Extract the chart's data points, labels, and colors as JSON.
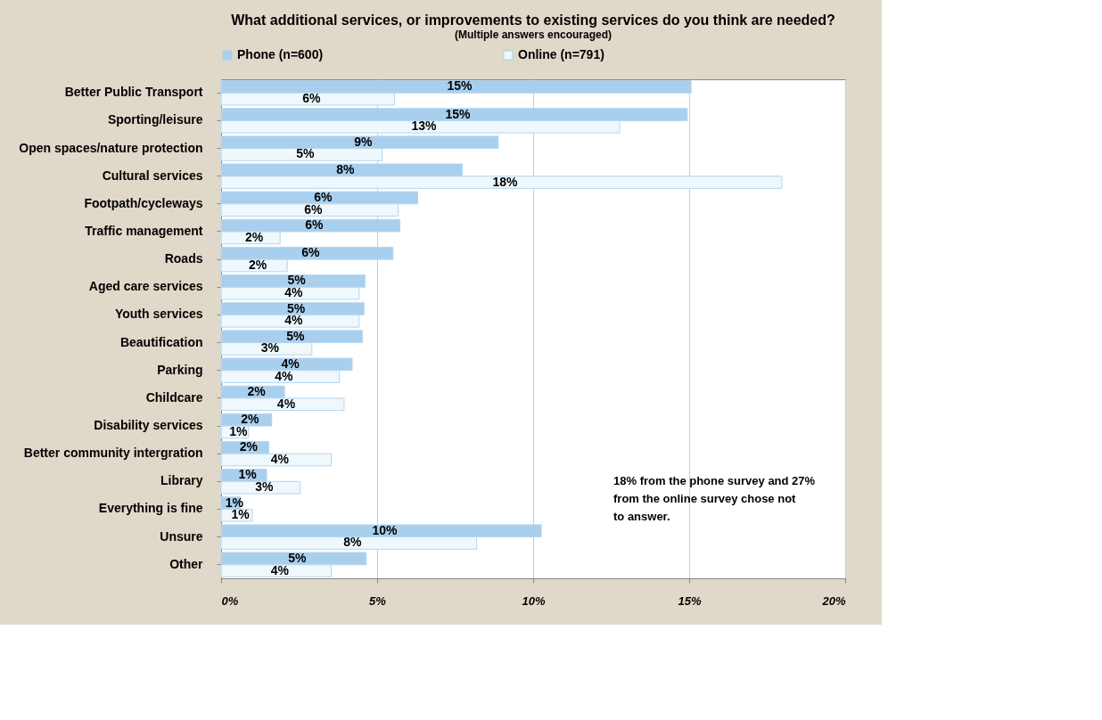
{
  "chart_data": {
    "type": "bar",
    "orientation": "horizontal",
    "title": "What additional services, or improvements to existing services do you think are needed?",
    "subtitle": "(Multiple answers encouraged)",
    "categories": [
      "Better Public Transport",
      "Sporting/leisure",
      "Open spaces/nature protection",
      "Cultural services",
      "Footpath/cycleways",
      "Traffic management",
      "Roads",
      "Aged care services",
      "Youth services",
      "Beautification",
      "Parking",
      "Childcare",
      "Disability services",
      "Better community intergration",
      "Library",
      "Everything is fine",
      "Unsure",
      "Other"
    ],
    "series": [
      {
        "name": "Phone (n=600)",
        "color": "#a9cfee",
        "values": [
          15.06,
          14.94,
          8.88,
          7.73,
          6.3,
          5.73,
          5.51,
          4.61,
          4.58,
          4.53,
          4.2,
          2.03,
          1.62,
          1.53,
          1.46,
          0.62,
          10.26,
          4.65
        ],
        "value_labels": [
          "15%",
          "15%",
          "9%",
          "8%",
          "6%",
          "6%",
          "6%",
          "5%",
          "5%",
          "5%",
          "4%",
          "2%",
          "2%",
          "2%",
          "1%",
          "1%",
          "10%",
          "5%"
        ]
      },
      {
        "name": "Online (n=791)",
        "color": "#eef8fd",
        "values": [
          5.56,
          12.77,
          5.16,
          17.97,
          5.68,
          1.89,
          2.12,
          4.42,
          4.42,
          2.91,
          3.79,
          3.94,
          0.88,
          3.53,
          2.53,
          1.0,
          8.19,
          3.53
        ],
        "value_labels": [
          "6%",
          "13%",
          "5%",
          "18%",
          "6%",
          "2%",
          "2%",
          "4%",
          "4%",
          "3%",
          "4%",
          "4%",
          "1%",
          "4%",
          "3%",
          "1%",
          "8%",
          "4%"
        ]
      }
    ],
    "xlim": [
      0,
      20
    ],
    "xticks": [
      {
        "value": 0,
        "label": "0%"
      },
      {
        "value": 5,
        "label": "5%"
      },
      {
        "value": 10,
        "label": "10%"
      },
      {
        "value": 15,
        "label": "15%"
      },
      {
        "value": 20,
        "label": "20%"
      }
    ],
    "grid": "x",
    "legend": "top",
    "annotations": [
      "18% from the phone survey  and 27% from the online survey chose not to answer."
    ]
  }
}
